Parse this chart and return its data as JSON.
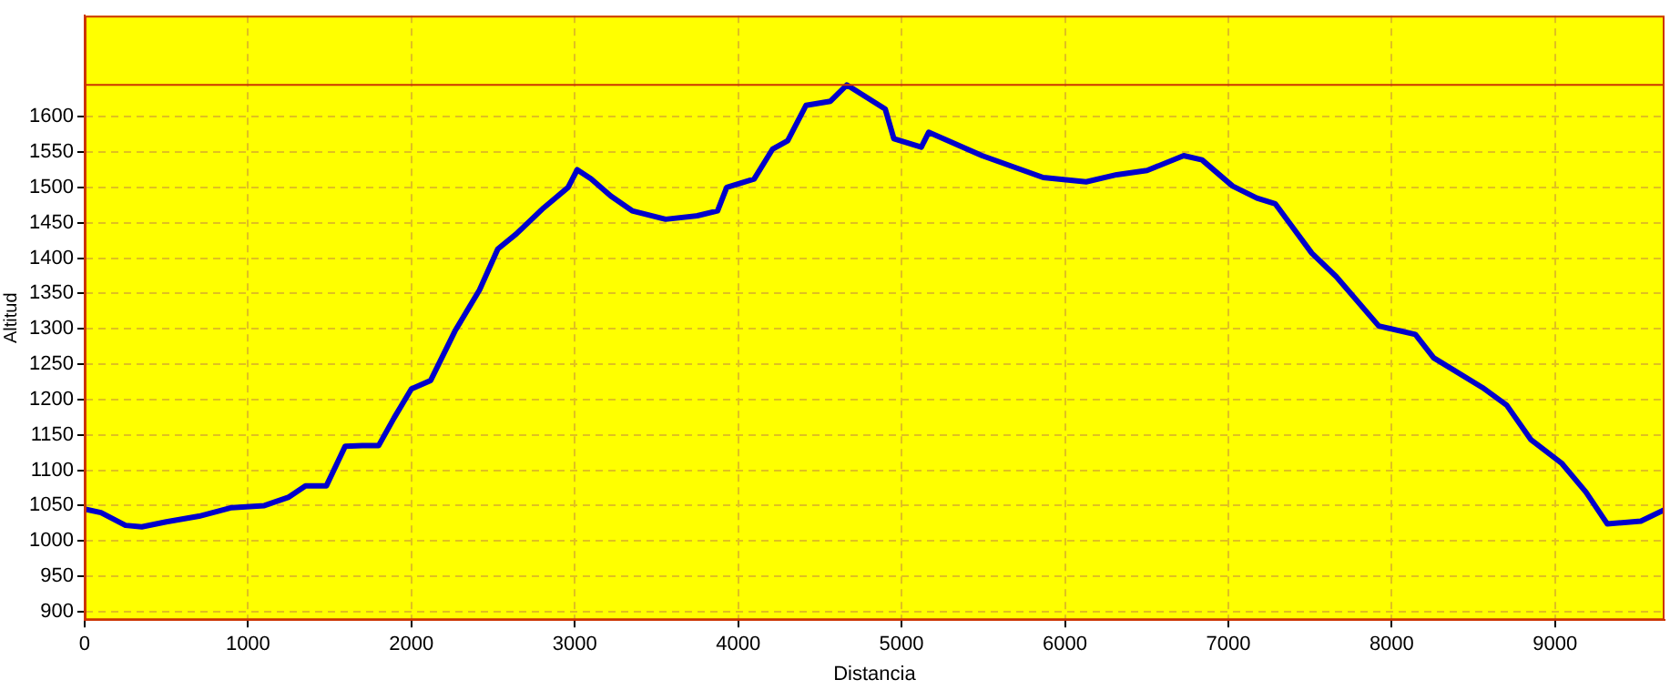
{
  "chart_data": {
    "type": "line",
    "xlabel": "Distancia",
    "ylabel": "Altitud",
    "x": [
      0,
      100,
      250,
      350,
      500,
      700,
      900,
      1100,
      1250,
      1352,
      1480,
      1595,
      1700,
      1800,
      1894,
      2000,
      2118,
      2267,
      2417,
      2529,
      2641,
      2809,
      2959,
      3015,
      3100,
      3220,
      3351,
      3556,
      3750,
      3874,
      3930,
      4098,
      4210,
      4303,
      4415,
      4565,
      4665,
      4900,
      4953,
      5121,
      5166,
      5493,
      5867,
      6130,
      6317,
      6503,
      6727,
      6839,
      7026,
      7175,
      7287,
      7511,
      7660,
      7921,
      8145,
      8257,
      8555,
      8704,
      8853,
      9040,
      9189,
      9320,
      9525,
      9670
    ],
    "series": [
      {
        "color": "#0000cc",
        "values": [
          1045,
          1040,
          1022,
          1020,
          1027,
          1035,
          1047,
          1050,
          1062,
          1078,
          1078,
          1134,
          1135,
          1135,
          1174,
          1215,
          1227,
          1297,
          1355,
          1413,
          1434,
          1471,
          1500,
          1525,
          1512,
          1488,
          1467,
          1455,
          1460,
          1467,
          1500,
          1512,
          1554,
          1566,
          1616,
          1622,
          1645,
          1611,
          1569,
          1557,
          1578,
          1545,
          1514,
          1508,
          1518,
          1524,
          1545,
          1539,
          1502,
          1485,
          1477,
          1407,
          1374,
          1304,
          1292,
          1259,
          1217,
          1192,
          1143,
          1110,
          1069,
          1024,
          1028,
          1044
        ]
      }
    ],
    "xlim": [
      0,
      9670
    ],
    "xticks": [
      0,
      1000,
      2000,
      3000,
      4000,
      5000,
      6000,
      7000,
      8000,
      9000
    ],
    "ylim": [
      888,
      1743
    ],
    "yticks": [
      900,
      950,
      1000,
      1050,
      1100,
      1150,
      1200,
      1250,
      1300,
      1350,
      1400,
      1450,
      1500,
      1550,
      1600
    ],
    "ref_lines": [
      {
        "axis": "y",
        "value": 1645,
        "color": "#cc3300"
      }
    ],
    "grid": true,
    "legend": false,
    "marker": "none",
    "line_style": "solid"
  }
}
